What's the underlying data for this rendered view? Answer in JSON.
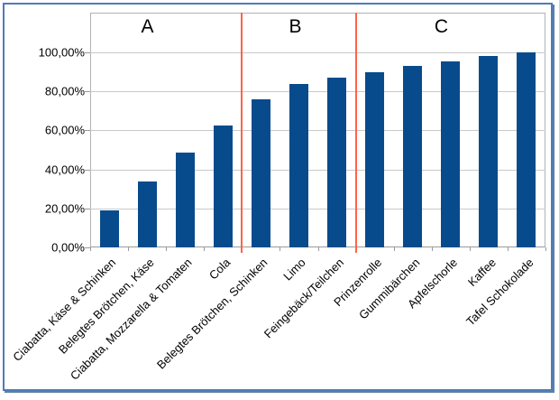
{
  "chart_data": {
    "type": "bar",
    "categories": [
      "Ciabatta, Käse & Schinken",
      "Belegtes Brötchen, Käse",
      "Ciabatta, Mozzarella & Tomaten",
      "Cola",
      "Belegtes Brötchen, Schinken",
      "Limo",
      "Feingebäck/Teilchen",
      "Prinzenrolle",
      "Gummibärchen",
      "Apfelschorle",
      "Kaffee",
      "Tafel Schokolade"
    ],
    "values": [
      19,
      34,
      48.5,
      62.5,
      76,
      84,
      87,
      90,
      93,
      95.5,
      98,
      100
    ],
    "value_unit": "percent-cumulative",
    "y_ticks": [
      {
        "value": 100,
        "label": "100,00%"
      },
      {
        "value": 80,
        "label": "80,00%"
      },
      {
        "value": 60,
        "label": "60,00%"
      },
      {
        "value": 40,
        "label": "40,00%"
      },
      {
        "value": 20,
        "label": "20,00%"
      },
      {
        "value": 0,
        "label": "0,00%"
      }
    ],
    "ylim": [
      0,
      120
    ],
    "grid": "horizontal",
    "legend": "none",
    "sections": [
      {
        "label": "A",
        "category_range": [
          1,
          4
        ]
      },
      {
        "label": "B",
        "category_range": [
          5,
          7
        ]
      },
      {
        "label": "C",
        "category_range": [
          8,
          12
        ]
      }
    ],
    "separators_after_category": [
      4,
      7
    ]
  },
  "colors": {
    "bar": "#084b8c",
    "separator": "#ff6347",
    "gridline": "#c9c9c9",
    "plot_border": "#b2b2b2",
    "frame_border": "#4d7cb8",
    "text": "#000000"
  }
}
